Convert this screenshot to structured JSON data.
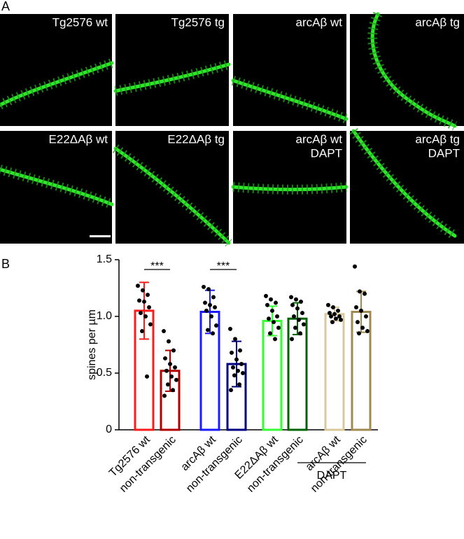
{
  "panel_labels": [
    "A",
    "B"
  ],
  "images": [
    {
      "label": [
        "Tg2576 wt"
      ]
    },
    {
      "label": [
        "Tg2576 tg"
      ]
    },
    {
      "label": [
        "arcAβ wt"
      ]
    },
    {
      "label": [
        "arcAβ tg"
      ]
    },
    {
      "label": [
        "E22ΔAβ wt"
      ]
    },
    {
      "label": [
        "E22ΔAβ tg"
      ]
    },
    {
      "label": [
        "arcAβ wt",
        "DAPT"
      ]
    },
    {
      "label": [
        "arcAβ tg",
        "DAPT"
      ]
    }
  ],
  "chart_data": {
    "type": "bar",
    "y_label": "spines per µm",
    "categories": [
      "Tg2576 wt",
      "non-transgenic",
      "arcAβ wt",
      "non-transgenic",
      "E22ΔAβ wt",
      "non-transgenic",
      "arcAβ wt",
      "non-transgenic"
    ],
    "values": [
      1.05,
      0.52,
      1.04,
      0.58,
      0.96,
      0.98,
      1.02,
      1.04
    ],
    "errors": [
      0.25,
      0.18,
      0.19,
      0.2,
      0.13,
      0.14,
      0.06,
      0.18
    ],
    "colors": [
      "#ff1a1a",
      "#b00000",
      "#1a1aff",
      "#000080",
      "#33ff33",
      "#006400",
      "#d8c89a",
      "#a08a50"
    ],
    "points": [
      [
        1.27,
        1.23,
        1.19,
        1.14,
        1.13,
        1.08,
        1.03,
        1.0,
        0.93,
        0.87,
        0.47
      ],
      [
        0.87,
        0.78,
        0.7,
        0.63,
        0.58,
        0.55,
        0.52,
        0.47,
        0.44,
        0.4,
        0.35,
        0.3
      ],
      [
        1.26,
        1.24,
        1.17,
        1.12,
        1.1,
        1.08,
        1.05,
        1.0,
        0.92,
        0.88,
        0.85
      ],
      [
        0.89,
        0.8,
        0.7,
        0.68,
        0.62,
        0.58,
        0.55,
        0.52,
        0.5,
        0.48,
        0.4,
        0.35
      ],
      [
        1.18,
        1.15,
        1.12,
        1.1,
        1.05,
        1.0,
        0.98,
        0.95,
        0.9,
        0.85,
        0.8
      ],
      [
        1.17,
        1.15,
        1.13,
        1.1,
        1.07,
        1.03,
        1.0,
        0.97,
        0.93,
        0.9,
        0.85,
        0.8
      ],
      [
        1.1,
        1.08,
        1.05,
        1.03,
        1.02,
        1.0,
        1.0,
        0.98,
        0.97,
        0.95
      ],
      [
        1.44,
        1.22,
        1.2,
        1.08,
        1.05,
        1.0,
        0.95,
        0.9,
        0.87,
        0.85
      ]
    ],
    "annotations": [
      "***",
      "***"
    ],
    "group_label": "DAPT",
    "ylim": [
      0,
      1.5
    ],
    "yticks": [
      0,
      0.5,
      {
        "value": 1,
        "label": "1.0"
      },
      1.5
    ]
  }
}
